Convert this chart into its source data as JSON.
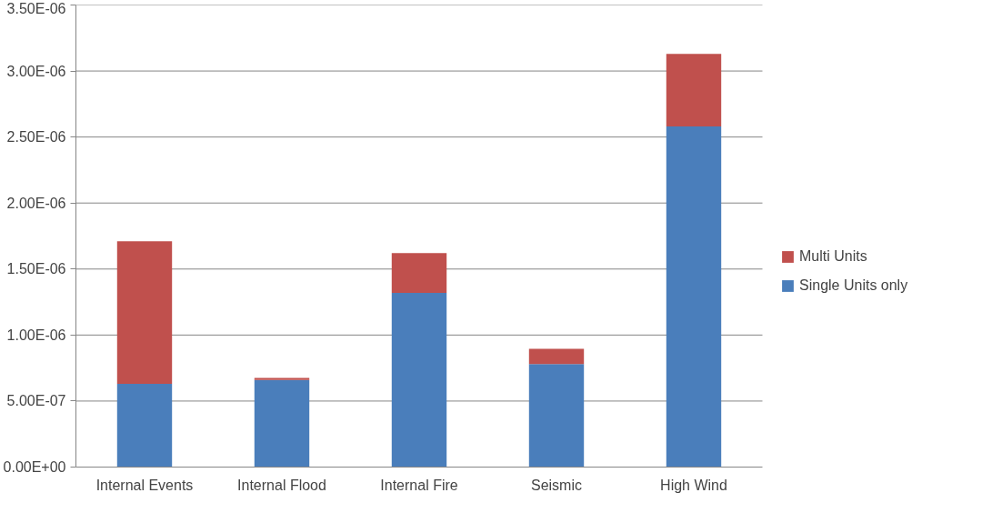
{
  "chart_data": {
    "type": "bar",
    "stacked": true,
    "categories": [
      "Internal Events",
      "Internal Flood",
      "Internal Fire",
      "Seismic",
      "High Wind"
    ],
    "series": [
      {
        "name": "Single Units only",
        "color": "#4a7ebb",
        "values": [
          6.3e-07,
          6.6e-07,
          1.32e-06,
          7.8e-07,
          2.58e-06
        ]
      },
      {
        "name": "Multi Units",
        "color": "#c0504d",
        "values": [
          1.08e-06,
          1.5e-08,
          3e-07,
          1.15e-07,
          5.5e-07
        ]
      }
    ],
    "ylim": [
      0,
      3.5e-06
    ],
    "yticks": [
      {
        "value": 0,
        "label": "0.00E+00"
      },
      {
        "value": 5e-07,
        "label": "5.00E-07"
      },
      {
        "value": 1e-06,
        "label": "1.00E-06"
      },
      {
        "value": 1.5e-06,
        "label": "1.50E-06"
      },
      {
        "value": 2e-06,
        "label": "2.00E-06"
      },
      {
        "value": 2.5e-06,
        "label": "2.50E-06"
      },
      {
        "value": 3e-06,
        "label": "3.00E-06"
      },
      {
        "value": 3.5e-06,
        "label": "3.50E-06"
      }
    ],
    "grid": "y",
    "legend": "right"
  }
}
